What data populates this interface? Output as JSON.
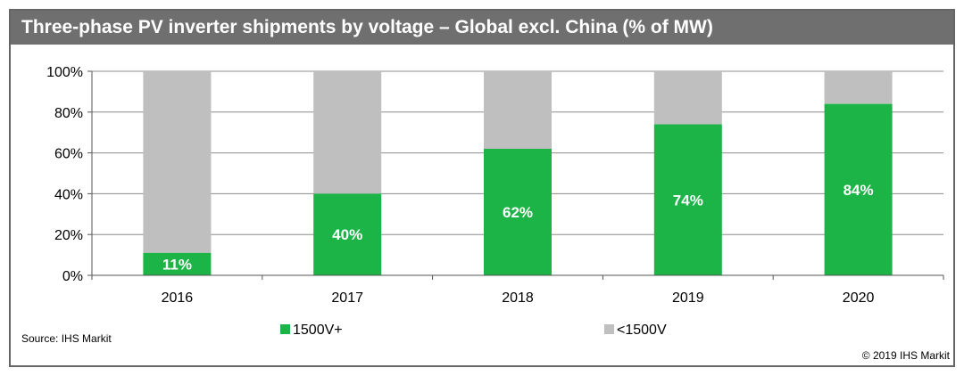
{
  "chart_data": {
    "type": "bar",
    "stacked": true,
    "title": "Three-phase PV inverter shipments by voltage – Global excl. China (% of MW)",
    "categories": [
      "2016",
      "2017",
      "2018",
      "2019",
      "2020"
    ],
    "series": [
      {
        "name": "1500V+",
        "values": [
          11,
          40,
          62,
          74,
          84
        ],
        "color": "#1db447",
        "labels": [
          "11%",
          "40%",
          "62%",
          "74%",
          "84%"
        ]
      },
      {
        "name": "<1500V",
        "values": [
          89,
          60,
          38,
          26,
          16
        ],
        "color": "#bfbfbf"
      }
    ],
    "y_ticks": [
      0,
      20,
      40,
      60,
      80,
      100
    ],
    "y_tick_labels": [
      "0%",
      "20%",
      "40%",
      "60%",
      "80%",
      "100%"
    ],
    "ylim": [
      0,
      100
    ],
    "grid": true,
    "legend": "bottom",
    "xlabel": "",
    "ylabel": ""
  },
  "footer": {
    "source": "Source: IHS Markit",
    "copyright": "© 2019 IHS Markit"
  }
}
